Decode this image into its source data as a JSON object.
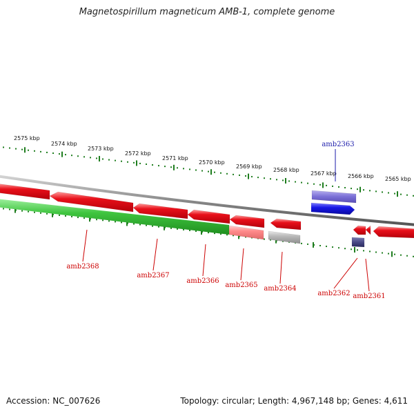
{
  "title": "Magnetospirillum magneticum AMB-1, complete genome",
  "footer": {
    "accession": "Accession: NC_007626",
    "summary": "Topology: circular; Length: 4,967,148 bp; Genes: 4,611"
  },
  "colors": {
    "forward_gene": "#e8101a",
    "forward_gene_light": "#ff8a8a",
    "pseudo_gene": "#b9b9b9",
    "reverse_gene": "#1818e6",
    "reverse_gene_light": "#7a6fd6",
    "reverse_gene_dark": "#4a4a86",
    "operon": "#3fc43f",
    "backbone": "#8a8a8a",
    "tick": "#1e7d1e",
    "label_red": "#cc0000",
    "label_blue": "#1a1aaa"
  },
  "scale_labels": [
    "2575 kbp",
    "2574 kbp",
    "2573 kbp",
    "2572 kbp",
    "2571 kbp",
    "2570 kbp",
    "2569 kbp",
    "2568 kbp",
    "2567 kbp",
    "2566 kbp",
    "2565 kbp"
  ],
  "gene_labels": [
    {
      "name": "amb2363",
      "strand": "reverse"
    },
    {
      "name": "amb2368",
      "strand": "forward"
    },
    {
      "name": "amb2367",
      "strand": "forward"
    },
    {
      "name": "amb2366",
      "strand": "forward"
    },
    {
      "name": "amb2365",
      "strand": "forward"
    },
    {
      "name": "amb2364",
      "strand": "forward"
    },
    {
      "name": "amb2362",
      "strand": "forward"
    },
    {
      "name": "amb2361",
      "strand": "forward"
    }
  ]
}
